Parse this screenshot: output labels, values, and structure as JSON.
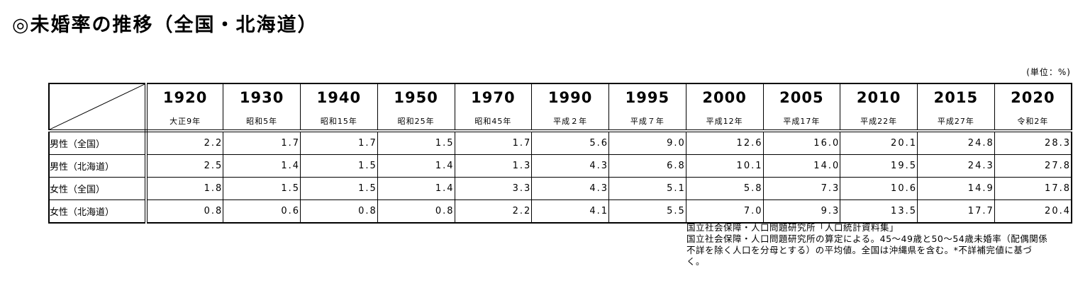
{
  "title": "◎未婚率の推移（全国・北海道）",
  "unit_label": "(単位：%)",
  "chart_data": {
    "type": "table",
    "title": "未婚率の推移（全国・北海道）",
    "unit": "%",
    "columns": [
      {
        "year": "1920",
        "era": "大正9年"
      },
      {
        "year": "1930",
        "era": "昭和5年"
      },
      {
        "year": "1940",
        "era": "昭和15年"
      },
      {
        "year": "1950",
        "era": "昭和25年"
      },
      {
        "year": "1970",
        "era": "昭和45年"
      },
      {
        "year": "1990",
        "era": "平成２年"
      },
      {
        "year": "1995",
        "era": "平成７年"
      },
      {
        "year": "2000",
        "era": "平成12年"
      },
      {
        "year": "2005",
        "era": "平成17年"
      },
      {
        "year": "2010",
        "era": "平成22年"
      },
      {
        "year": "2015",
        "era": "平成27年"
      },
      {
        "year": "2020",
        "era": "令和2年"
      }
    ],
    "rows": [
      {
        "label": "男性（全国）",
        "values": [
          "2.2",
          "1.7",
          "1.7",
          "1.5",
          "1.7",
          "5.6",
          "9.0",
          "12.6",
          "16.0",
          "20.1",
          "24.8",
          "28.3"
        ]
      },
      {
        "label": "男性（北海道）",
        "values": [
          "2.5",
          "1.4",
          "1.5",
          "1.4",
          "1.3",
          "4.3",
          "6.8",
          "10.1",
          "14.0",
          "19.5",
          "24.3",
          "27.8"
        ]
      },
      {
        "label": "女性（全国）",
        "values": [
          "1.8",
          "1.5",
          "1.5",
          "1.4",
          "3.3",
          "4.3",
          "5.1",
          "5.8",
          "7.3",
          "10.6",
          "14.9",
          "17.8"
        ]
      },
      {
        "label": "女性（北海道）",
        "values": [
          "0.8",
          "0.6",
          "0.8",
          "0.8",
          "2.2",
          "4.1",
          "5.5",
          "7.0",
          "9.3",
          "13.5",
          "17.7",
          "20.4"
        ]
      }
    ]
  },
  "notes": {
    "lines": [
      "国立社会保障・人口問題研究所「人口統計資料集」",
      "国立社会保障・人口問題研究所の算定による。45～49歳と50～54歳未婚率（配偶関係",
      "不詳を除く人口を分母とする）の平均値。全国は沖縄県を含む。*不詳補完値に基づ",
      "く。"
    ]
  }
}
